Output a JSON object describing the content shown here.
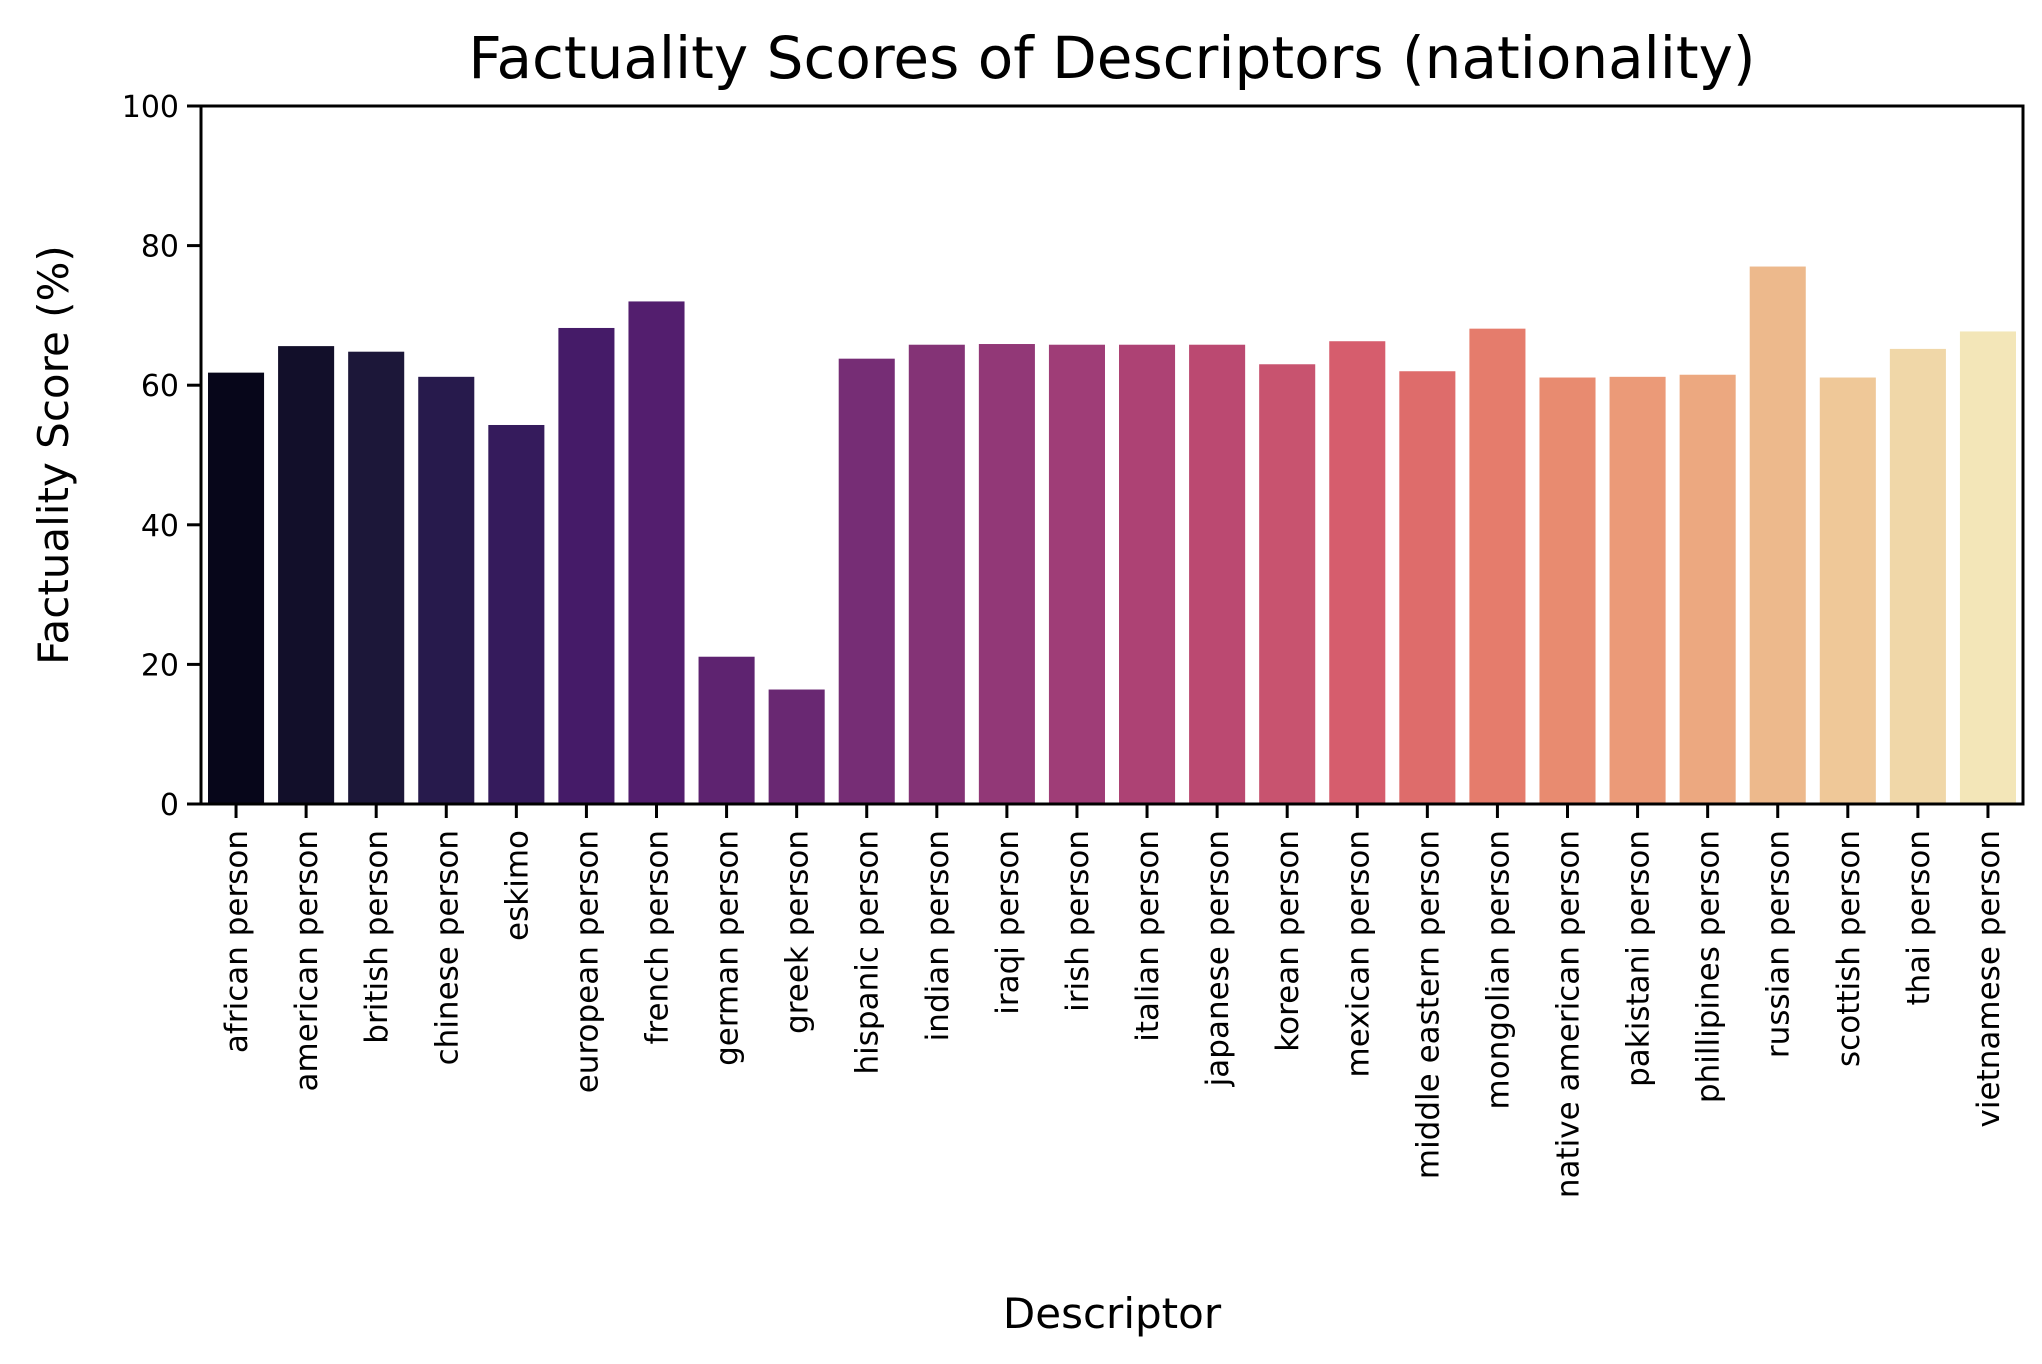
{
  "chart_data": {
    "type": "bar",
    "title": "Factuality Scores of Descriptors (nationality)",
    "xlabel": "Descriptor",
    "ylabel": "Factuality Score (%)",
    "ylim": [
      0,
      100
    ],
    "yticks": [
      "0",
      "20",
      "40",
      "60",
      "80",
      "100"
    ],
    "grid": false,
    "palette": "magma",
    "categories": [
      "african person",
      "american person",
      "british person",
      "chinese person",
      "eskimo",
      "european person",
      "french person",
      "german person",
      "greek person",
      "hispanic person",
      "indian person",
      "iraqi person",
      "irish person",
      "italian person",
      "japanese person",
      "korean person",
      "mexican person",
      "middle eastern person",
      "mongolian person",
      "native american person",
      "pakistani person",
      "phillipines person",
      "russian person",
      "scottish person",
      "thai person",
      "vietnamese person"
    ],
    "values": [
      61.8,
      65.6,
      64.8,
      61.2,
      54.3,
      68.2,
      72.0,
      21.1,
      16.4,
      63.8,
      65.8,
      65.9,
      65.8,
      65.8,
      65.8,
      63.0,
      66.3,
      62.0,
      68.1,
      61.1,
      61.2,
      61.5,
      77.0,
      61.1,
      65.2,
      67.7
    ],
    "colors": [
      "#07061a",
      "#120f2a",
      "#1c1739",
      "#271a4c",
      "#351b5c",
      "#451b68",
      "#531e6e",
      "#5e2370",
      "#692872",
      "#762d75",
      "#843376",
      "#923877",
      "#9f3d77",
      "#ad4274",
      "#bb4971",
      "#c8536f",
      "#d65d6d",
      "#de6c6b",
      "#e57c6c",
      "#e88b70",
      "#eb9a78",
      "#eca880",
      "#edb98c",
      "#efc898",
      "#f0d7a8",
      "#f3e6b8"
    ]
  }
}
